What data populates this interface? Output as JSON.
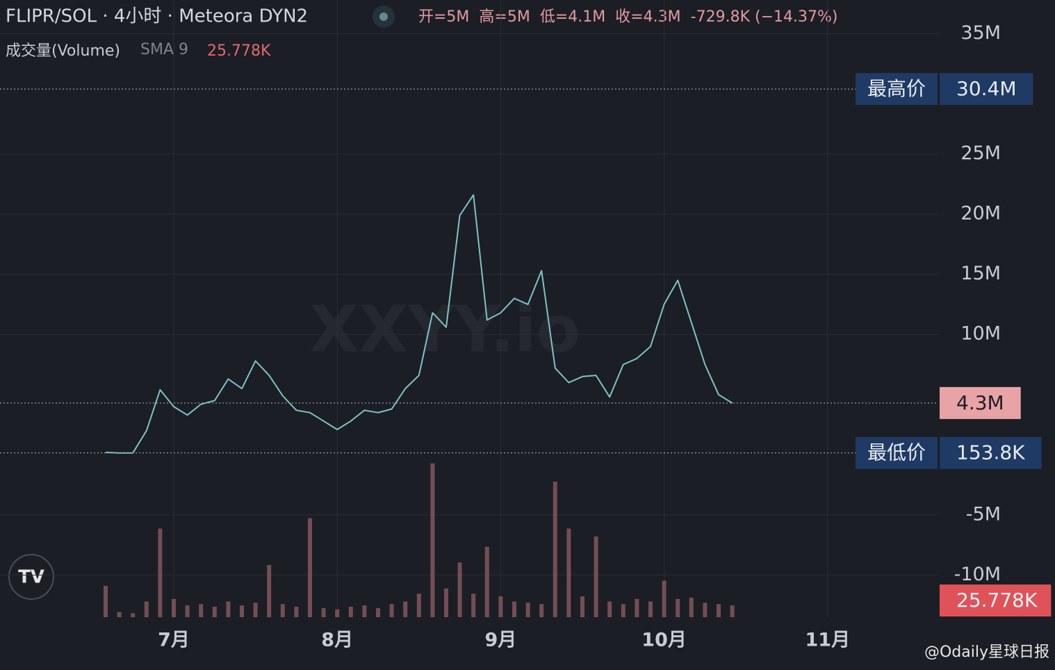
{
  "chart_data": {
    "type": "line",
    "title": "FLIPR/SOL · 4小时 · Meteora DYN2",
    "ohlc": [
      "开=5M",
      "高=5M",
      "低=4.1M",
      "收=4.3M",
      "-729.8K (−14.37%)"
    ],
    "watermark": "XXYY.io",
    "source": "@Odaily星球日报",
    "categories": [
      null,
      null,
      null,
      null,
      null,
      null,
      null,
      null,
      null,
      null,
      null,
      null,
      "7月",
      null,
      null,
      null,
      null,
      null,
      null,
      null,
      null,
      null,
      null,
      null,
      "8月",
      null,
      null,
      null,
      null,
      null,
      null,
      null,
      null,
      null,
      null,
      null,
      "9月",
      null,
      null,
      null,
      null,
      null,
      null,
      null,
      null,
      null,
      null,
      null,
      "10月",
      null,
      null,
      null,
      null,
      null,
      null,
      null,
      null,
      null,
      null,
      null,
      "11月",
      null,
      null,
      null,
      null,
      null,
      null,
      null,
      null
    ],
    "values": [
      null,
      null,
      null,
      null,
      null,
      null,
      null,
      0.2,
      0.15,
      0.15,
      2.0,
      5.4,
      4.0,
      3.3,
      4.2,
      4.5,
      6.3,
      5.5,
      7.8,
      6.6,
      4.9,
      3.7,
      3.5,
      2.8,
      2.1,
      2.8,
      3.7,
      3.5,
      3.8,
      5.5,
      6.6,
      11.8,
      10.6,
      19.9,
      21.6,
      11.2,
      11.8,
      13,
      12.5,
      15.3,
      7.2,
      6.0,
      6.5,
      6.6,
      4.8,
      7.5,
      8,
      9,
      12.5,
      14.5,
      11,
      7.5,
      5,
      4.3,
      null,
      null,
      null,
      null,
      null,
      null,
      null,
      null,
      null,
      null,
      null,
      null,
      null,
      null,
      null
    ],
    "color": "#7cc4c6",
    "ylim": [
      -13.5,
      37.8
    ],
    "yticks": [
      {
        "value": 35,
        "label": "35M"
      },
      {
        "value": 25,
        "label": "25M"
      },
      {
        "value": 20,
        "label": "20M"
      },
      {
        "value": 15,
        "label": "15M"
      },
      {
        "value": 10,
        "label": "10M"
      },
      {
        "value": -5,
        "label": "-5M"
      },
      {
        "value": -10,
        "label": "-10M"
      }
    ],
    "grid": true,
    "markers": [
      {
        "label": "最高价",
        "value": 30.4,
        "value_label": "30.4M",
        "color": "#1f3a64"
      },
      {
        "value": 4.3,
        "value_label": "4.3M",
        "color": "#e8a3a7"
      },
      {
        "label": "最低价",
        "value": 0.1538,
        "value_label": "153.8K",
        "color": "#1f3a64"
      }
    ],
    "volume": {
      "name": "成交量(Volume)",
      "sma_label": "SMA 9",
      "sma_value": 25.778,
      "sma_value_label": "25.778K",
      "sma_color": "#e0525a",
      "color": "#8a5a60",
      "ylim": [
        0,
        600
      ],
      "values": [
        null,
        null,
        null,
        null,
        null,
        null,
        null,
        120,
        20,
        15,
        60,
        340,
        70,
        45,
        50,
        40,
        60,
        45,
        55,
        200,
        50,
        40,
        380,
        35,
        30,
        40,
        45,
        35,
        50,
        60,
        90,
        590,
        110,
        210,
        90,
        270,
        80,
        60,
        55,
        50,
        520,
        340,
        80,
        310,
        60,
        50,
        70,
        60,
        140,
        70,
        75,
        55,
        50,
        45,
        null,
        null,
        null,
        null,
        null,
        null,
        null,
        null,
        null,
        null,
        null,
        null,
        null,
        null,
        null
      ]
    }
  }
}
